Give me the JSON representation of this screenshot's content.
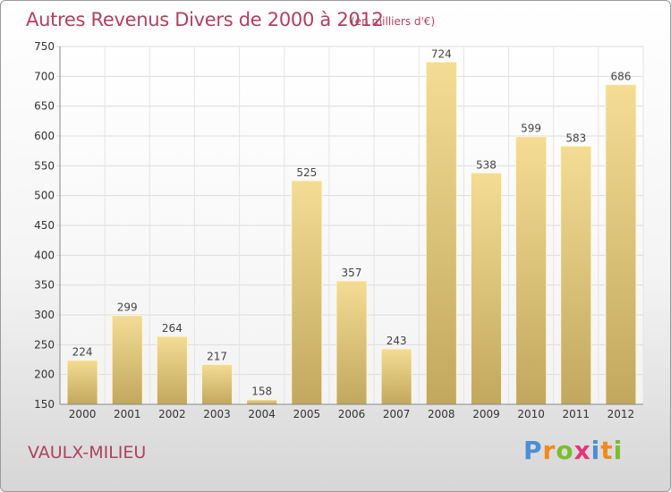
{
  "header": {
    "title": "Autres Revenus Divers de 2000 à 2012",
    "subtitle": "(en milliers d'€)"
  },
  "footer": {
    "town": "VAULX-MILIEU",
    "logo": {
      "letters": [
        "P",
        "r",
        "o",
        "x",
        "i",
        "t",
        "i"
      ],
      "colors": [
        "#4a8fd4",
        "#f08a1c",
        "#7cbd2e",
        "#e2357a",
        "#4a8fd4",
        "#f08a1c",
        "#7cbd2e"
      ]
    }
  },
  "colors": {
    "title": "#b0405e",
    "bar_top": "#f4dc94",
    "bar_bottom": "#c2a85e"
  },
  "chart_data": {
    "type": "bar",
    "categories": [
      "2000",
      "2001",
      "2002",
      "2003",
      "2004",
      "2005",
      "2006",
      "2007",
      "2008",
      "2009",
      "2010",
      "2011",
      "2012"
    ],
    "values": [
      224,
      299,
      264,
      217,
      158,
      525,
      357,
      243,
      724,
      538,
      599,
      583,
      686
    ],
    "ylim": [
      150,
      750
    ],
    "yticks": [
      150,
      200,
      250,
      300,
      350,
      400,
      450,
      500,
      550,
      600,
      650,
      700,
      750
    ],
    "grid": true
  }
}
